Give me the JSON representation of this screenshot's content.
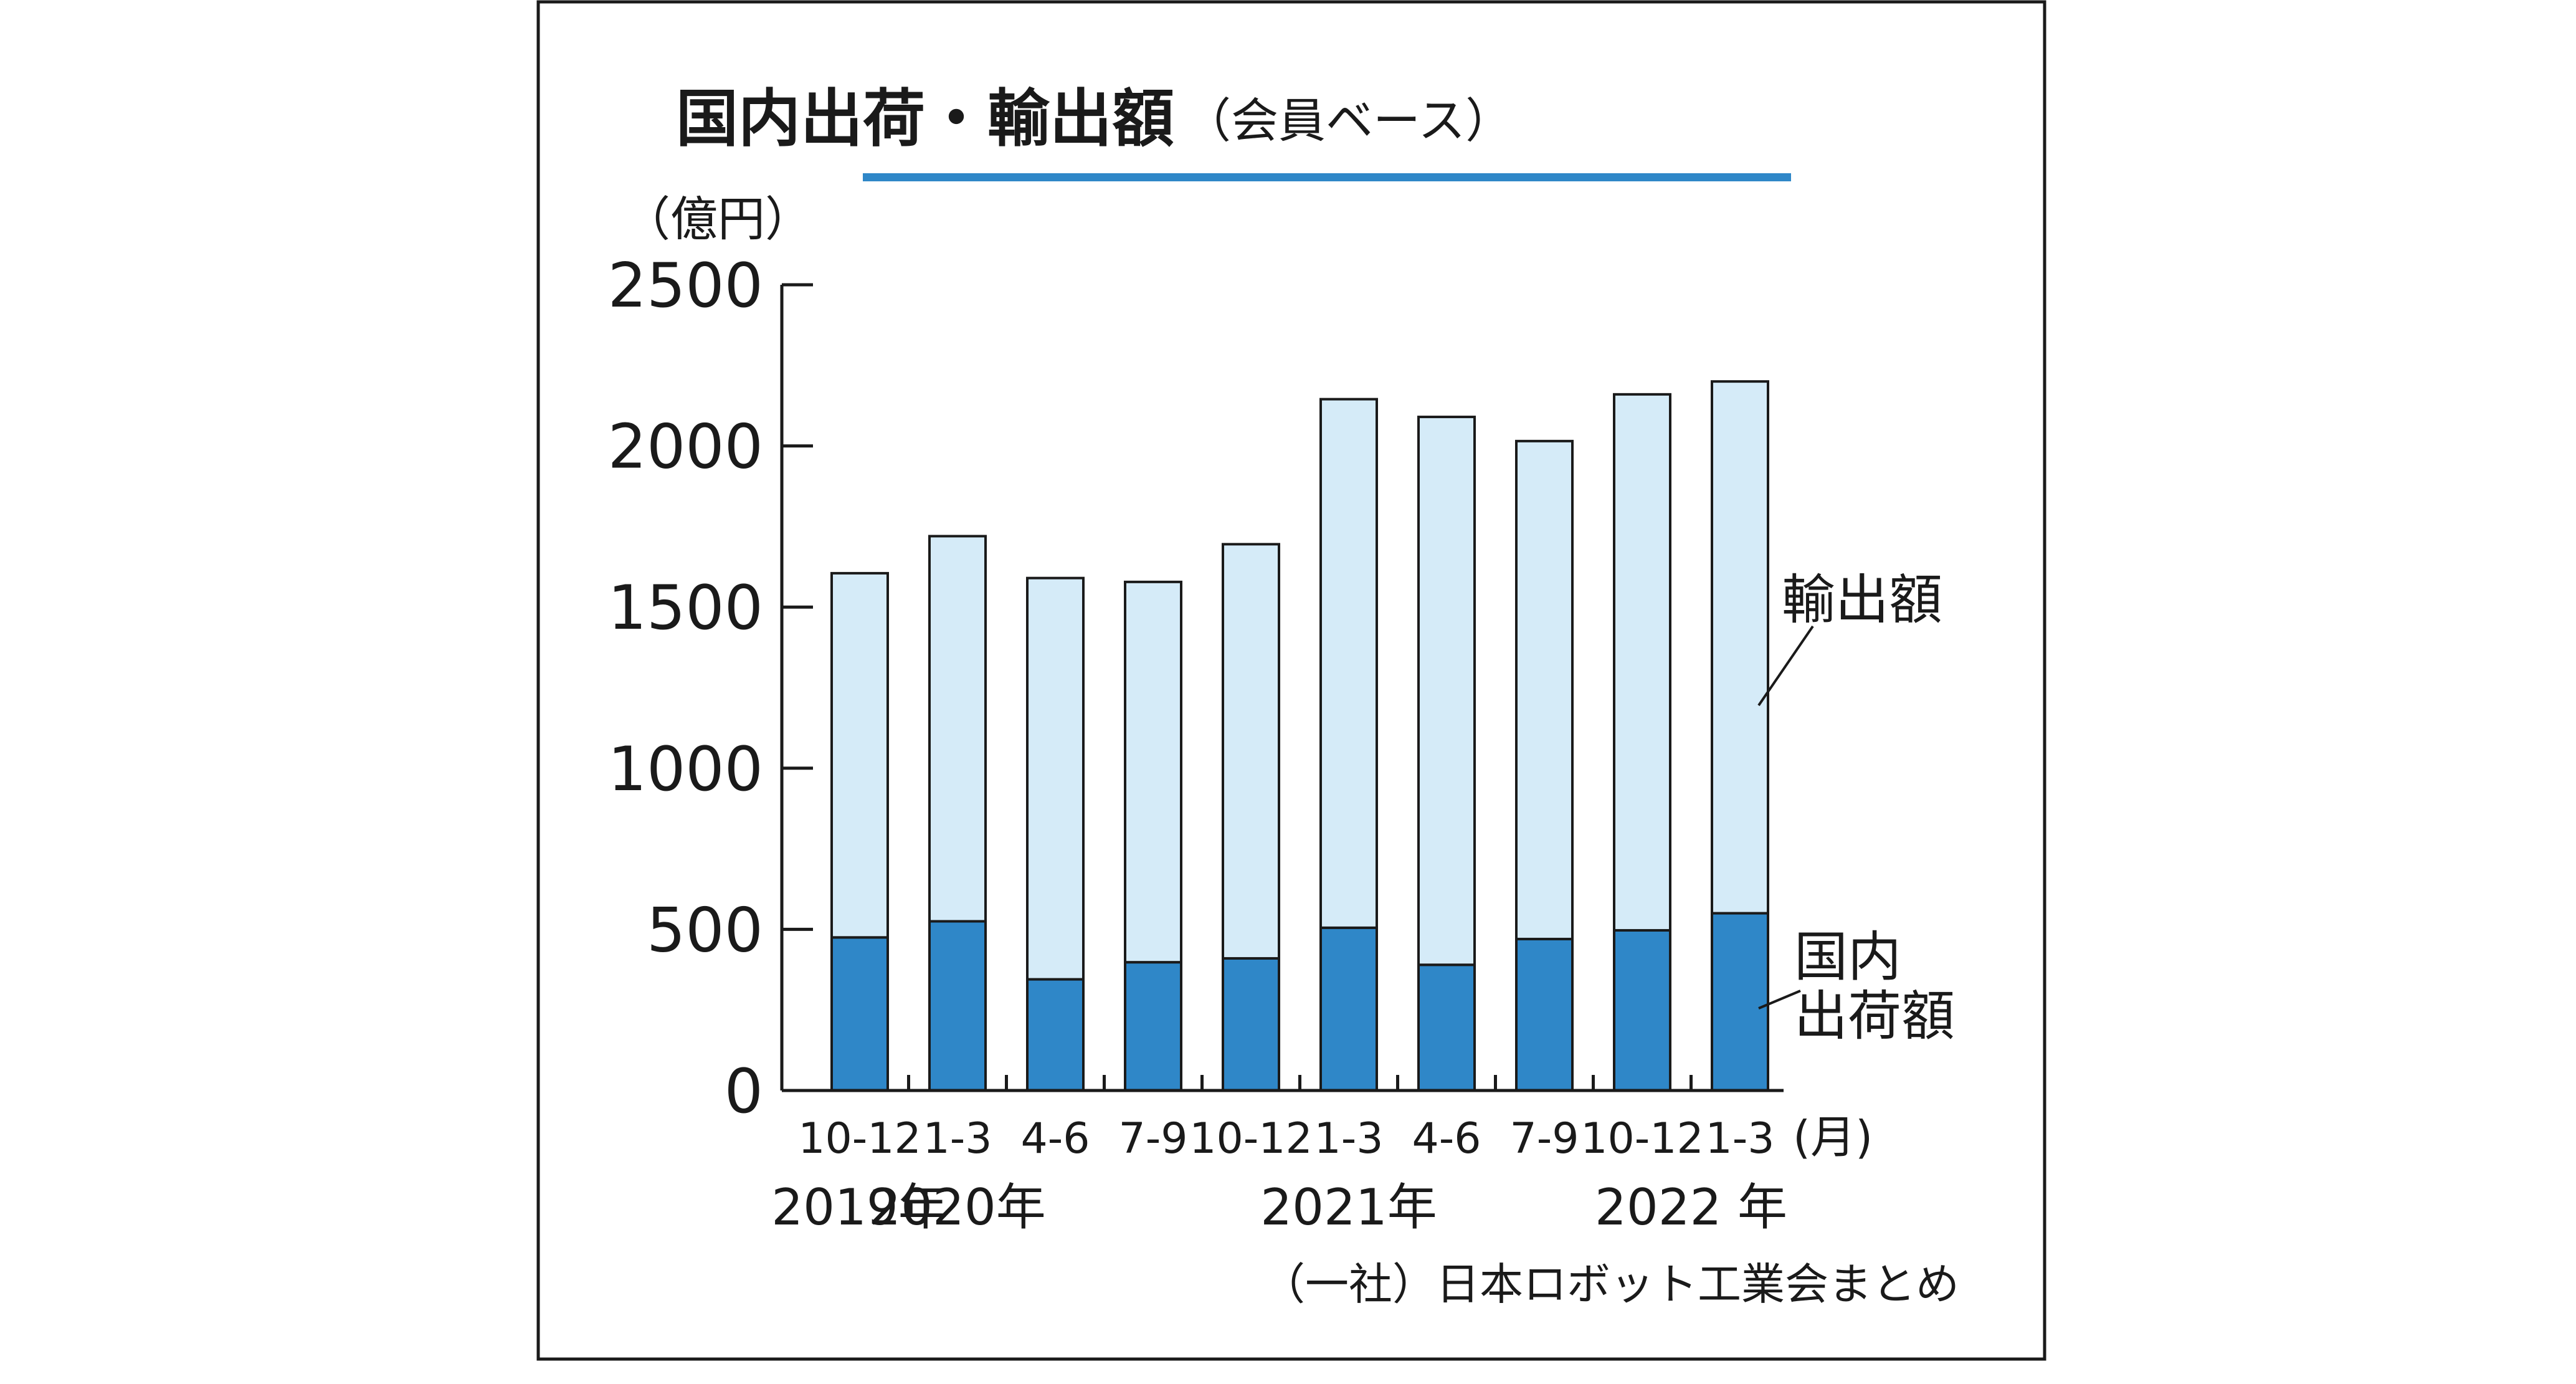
{
  "title": "国内出荷・輸出額",
  "subtitle": "（会員ベース）",
  "source": "（一社）日本ロボット工業会まとめ",
  "colors": {
    "domestic": "#2f87c8",
    "export": "#d5ebf8",
    "title_underline": "#2f87c8",
    "frame": "#1a1a1a"
  },
  "chart_data": {
    "type": "bar",
    "stacked": true,
    "ylabel": "（億円）",
    "ylim": [
      0,
      2500
    ],
    "yticks": [
      0,
      500,
      1000,
      1500,
      2000,
      2500
    ],
    "yticklabels": [
      "0",
      "500",
      "1000",
      "1500",
      "2000",
      "2500"
    ],
    "categories": [
      "10-12",
      "1-3",
      "4-6",
      "7-9",
      "10-12",
      "1-3",
      "4-6",
      "7-9",
      "10-12",
      "1-3"
    ],
    "x_unit": "(月)",
    "year_labels": [
      {
        "text": "2019年",
        "start": 0,
        "end": 0
      },
      {
        "text": "2020年",
        "start": 1,
        "end": 1
      },
      {
        "text": "2021年",
        "start": 4,
        "end": 6
      },
      {
        "text": "2022 年",
        "start": 8,
        "end": 9
      }
    ],
    "series": [
      {
        "name": "国内出荷額",
        "label_lines": [
          "国内",
          "出荷額"
        ],
        "values": [
          475,
          525,
          345,
          398,
          410,
          505,
          390,
          470,
          497,
          550
        ]
      },
      {
        "name": "輸出額",
        "label_lines": [
          "輸出額"
        ],
        "values": [
          1130,
          1195,
          1245,
          1180,
          1285,
          1640,
          1700,
          1545,
          1663,
          1650
        ]
      }
    ]
  }
}
